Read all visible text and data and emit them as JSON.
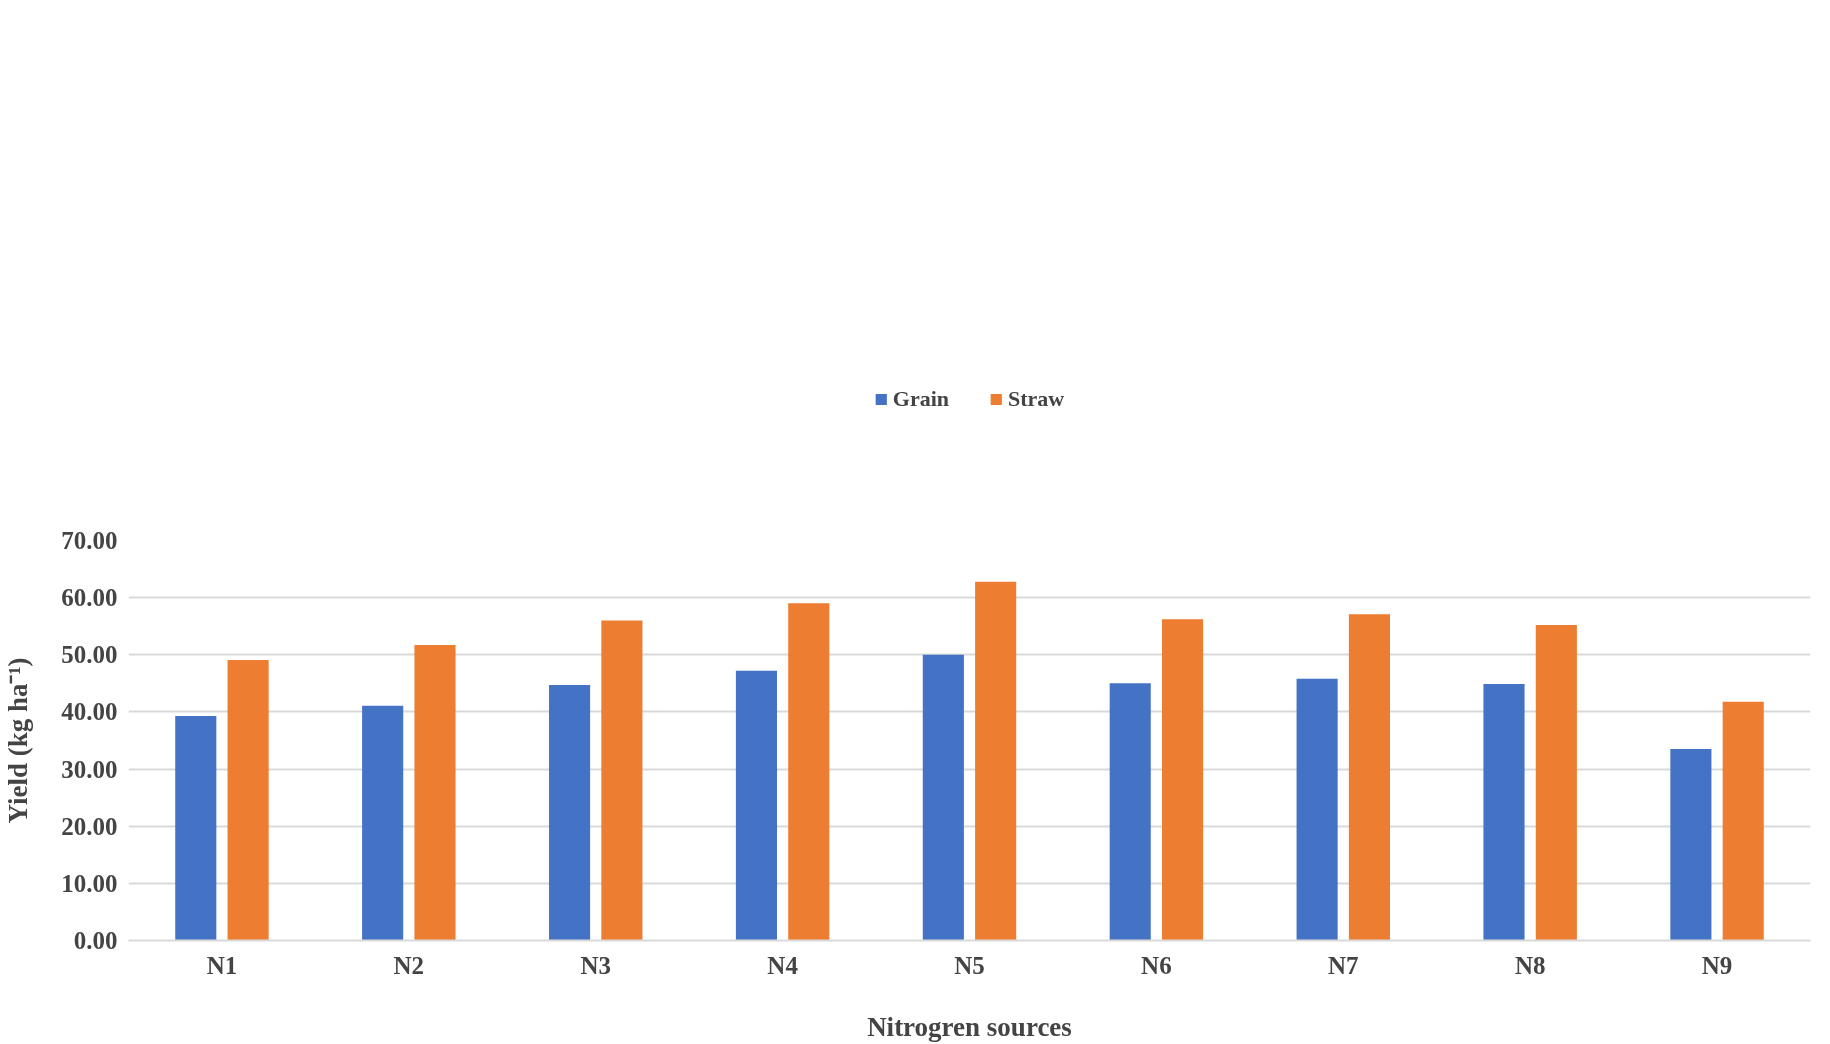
{
  "chart_data": {
    "type": "bar",
    "xlabel": "Nitrogren sources",
    "ylabel": "Yield (kg ha⁻¹)",
    "categories": [
      "N1",
      "N2",
      "N3",
      "N4",
      "N5",
      "N6",
      "N7",
      "N8",
      "N9"
    ],
    "series": [
      {
        "name": "Grain",
        "color": "#4472c4",
        "values": [
          39.3,
          41.1,
          44.7,
          47.2,
          50.0,
          45.0,
          45.8,
          44.9,
          33.5
        ]
      },
      {
        "name": "Straw",
        "color": "#ed7d31",
        "values": [
          49.1,
          51.7,
          56.0,
          59.0,
          62.8,
          56.2,
          57.1,
          55.2,
          41.8
        ]
      }
    ],
    "ylim": [
      0,
      70
    ],
    "yticks": [
      {
        "value": 0,
        "label": "0.00"
      },
      {
        "value": 10,
        "label": "10.00"
      },
      {
        "value": 20,
        "label": "20.00"
      },
      {
        "value": 30,
        "label": "30.00"
      },
      {
        "value": 40,
        "label": "40.00"
      },
      {
        "value": 50,
        "label": "50.00"
      },
      {
        "value": 60,
        "label": "60.00"
      },
      {
        "value": 70,
        "label": "70.00"
      }
    ],
    "grid": "y",
    "legend": "top"
  }
}
